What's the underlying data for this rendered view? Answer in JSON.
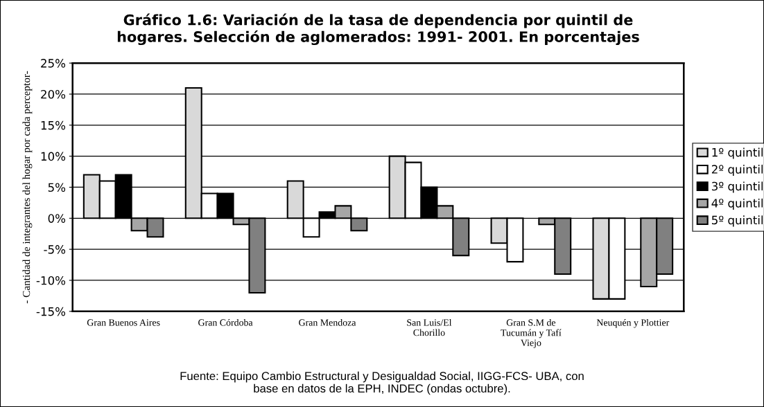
{
  "chart_data": {
    "type": "bar",
    "title": "Gráfico 1.6: Variación de la tasa de dependencia por quintil de\nhogares. Selección de aglomerados: 1991- 2001. En porcentajes",
    "ylabel": "- Cantidad de integrantes del hogar por cada perceptor-",
    "categories": [
      "Gran Buenos Aires",
      "Gran Córdoba",
      "Gran Mendoza",
      "San Luis/El\nChorillo",
      "Gran S.M de\nTucumán y Tafí\nViejo",
      "Neuquén y Plottier"
    ],
    "series": [
      {
        "name": "1º quintil",
        "color": "#d9d9d9",
        "values": [
          7,
          21,
          6,
          10,
          -4,
          -13
        ]
      },
      {
        "name": "2º quintil",
        "color": "#ffffff",
        "values": [
          6,
          4,
          -3,
          9,
          -7,
          -13
        ]
      },
      {
        "name": "3º quintil",
        "color": "#000000",
        "values": [
          7,
          4,
          1,
          5,
          null,
          null
        ]
      },
      {
        "name": "4º quintil",
        "color": "#a6a6a6",
        "values": [
          -2,
          -1,
          2,
          2,
          -1,
          -11
        ]
      },
      {
        "name": "5º quintil",
        "color": "#808080",
        "values": [
          -3,
          -12,
          -2,
          -6,
          -9,
          -9
        ]
      }
    ],
    "ylim": [
      -15,
      25
    ],
    "yticks": [
      {
        "value": -15,
        "label": "-15%"
      },
      {
        "value": -10,
        "label": "-10%"
      },
      {
        "value": -5,
        "label": "-5%"
      },
      {
        "value": 0,
        "label": "0%"
      },
      {
        "value": 5,
        "label": "5%"
      },
      {
        "value": 10,
        "label": "10%"
      },
      {
        "value": 15,
        "label": "15%"
      },
      {
        "value": 20,
        "label": "20%"
      },
      {
        "value": 25,
        "label": "25%"
      }
    ],
    "grid": "y",
    "legend": "right",
    "annotations": [
      "Fuente: Equipo Cambio Estructural y Desigualdad Social, IIGG-FCS- UBA, con\nbase en datos de la EPH, INDEC (ondas octubre)."
    ]
  }
}
